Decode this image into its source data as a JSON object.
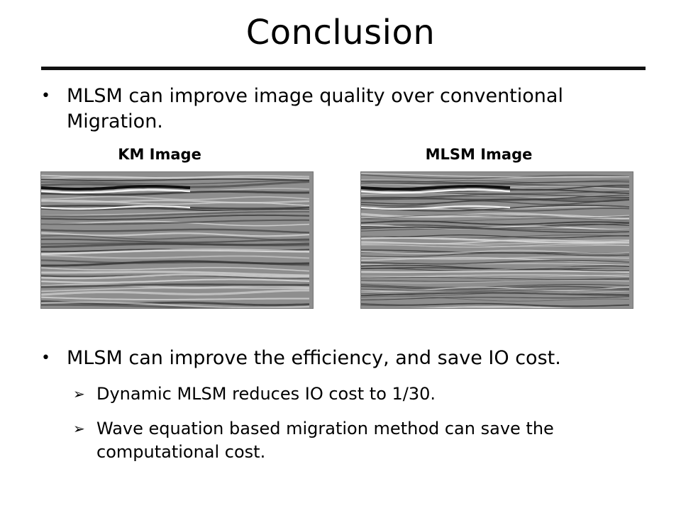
{
  "slide": {
    "title": "Conclusion",
    "bullet1": "MLSM can improve image quality over conventional Migration.",
    "images": [
      {
        "label": "KM Image"
      },
      {
        "label": "MLSM Image"
      }
    ],
    "bullet2": "MLSM can improve the efficiency, and save IO cost.",
    "sub_bullets": [
      "Dynamic MLSM reduces IO cost to 1/30.",
      "Wave equation based migration method can save the computational cost."
    ]
  }
}
